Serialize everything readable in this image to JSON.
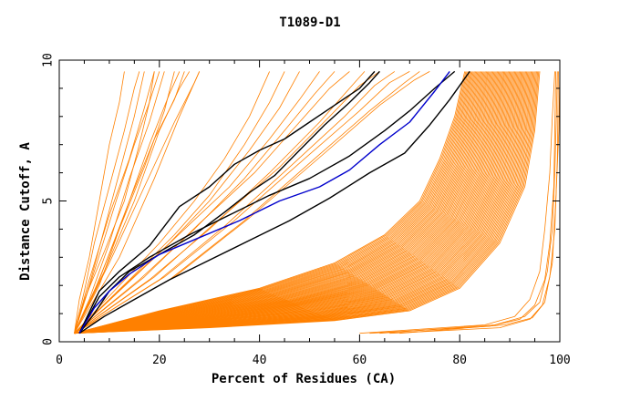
{
  "chart_data": {
    "type": "line",
    "title": "T1089-D1",
    "xlabel": "Percent of Residues (CA)",
    "ylabel": "Distance Cutoff, A",
    "xlim": [
      0,
      100
    ],
    "ylim": [
      0,
      10
    ],
    "x_ticks": [
      "0",
      "20",
      "40",
      "60",
      "80",
      "100"
    ],
    "y_ticks": [
      "0",
      "5",
      "10"
    ],
    "grid": false,
    "legend": "none",
    "colors": {
      "background_group": "#ff8000",
      "highlight_black": "#000000",
      "highlight_blue": "#0000cc"
    },
    "background_group": {
      "left_steep": [
        [
          [
            3,
            0.3
          ],
          [
            4,
            1.5
          ],
          [
            6,
            3
          ],
          [
            8,
            5
          ],
          [
            10,
            7
          ],
          [
            12,
            8.5
          ],
          [
            13,
            9.6
          ]
        ],
        [
          [
            3,
            0.3
          ],
          [
            5,
            1.8
          ],
          [
            7,
            3.5
          ],
          [
            10,
            5.5
          ],
          [
            13,
            7.5
          ],
          [
            15,
            9
          ],
          [
            16,
            9.6
          ]
        ],
        [
          [
            3,
            0.3
          ],
          [
            6,
            2
          ],
          [
            9,
            4
          ],
          [
            12,
            6
          ],
          [
            15,
            8
          ],
          [
            17,
            9.6
          ]
        ],
        [
          [
            3,
            0.3
          ],
          [
            6,
            2.2
          ],
          [
            10,
            4.5
          ],
          [
            14,
            6.5
          ],
          [
            17,
            8.3
          ],
          [
            19,
            9.6
          ]
        ],
        [
          [
            3,
            0.3
          ],
          [
            7,
            2.5
          ],
          [
            11,
            4.8
          ],
          [
            15,
            7
          ],
          [
            18,
            8.5
          ],
          [
            20,
            9.6
          ]
        ],
        [
          [
            3,
            0.3
          ],
          [
            6,
            1.5
          ],
          [
            10,
            3.5
          ],
          [
            14,
            5.8
          ],
          [
            18,
            7.8
          ],
          [
            21,
            9.6
          ]
        ],
        [
          [
            3,
            0.3
          ],
          [
            7,
            1.8
          ],
          [
            12,
            4
          ],
          [
            17,
            6.2
          ],
          [
            21,
            8.2
          ],
          [
            23,
            9.6
          ]
        ],
        [
          [
            3,
            0.3
          ],
          [
            8,
            2
          ],
          [
            13,
            4.5
          ],
          [
            18,
            7
          ],
          [
            22,
            8.8
          ],
          [
            24,
            9.6
          ]
        ],
        [
          [
            3,
            0.3
          ],
          [
            5,
            1.5
          ],
          [
            9,
            3.2
          ],
          [
            13,
            5
          ],
          [
            16,
            7
          ],
          [
            18,
            8.5
          ],
          [
            19,
            9.6
          ]
        ],
        [
          [
            3,
            0.3
          ],
          [
            8,
            2.2
          ],
          [
            14,
            5
          ],
          [
            19,
            7.2
          ],
          [
            23,
            8.6
          ],
          [
            25,
            9.6
          ]
        ],
        [
          [
            3,
            0.3
          ],
          [
            9,
            2.5
          ],
          [
            15,
            5
          ],
          [
            20,
            7.5
          ],
          [
            24,
            9
          ],
          [
            26,
            9.6
          ]
        ],
        [
          [
            3,
            0.3
          ],
          [
            10,
            2.8
          ],
          [
            17,
            5.5
          ],
          [
            23,
            7.8
          ],
          [
            27,
            9.2
          ],
          [
            28,
            9.6
          ]
        ],
        [
          [
            3,
            0.3
          ],
          [
            12,
            3
          ],
          [
            19,
            5.8
          ],
          [
            24,
            8
          ],
          [
            28,
            9.6
          ]
        ]
      ],
      "upper_mid": [
        [
          [
            3,
            0.3
          ],
          [
            12,
            2
          ],
          [
            20,
            3.5
          ],
          [
            27,
            5
          ],
          [
            33,
            6.5
          ],
          [
            38,
            8
          ],
          [
            42,
            9.6
          ]
        ],
        [
          [
            3,
            0.3
          ],
          [
            14,
            2.2
          ],
          [
            23,
            3.8
          ],
          [
            30,
            5.2
          ],
          [
            37,
            7
          ],
          [
            42,
            8.5
          ],
          [
            45,
            9.6
          ]
        ],
        [
          [
            3,
            0.3
          ],
          [
            13,
            2
          ],
          [
            22,
            3.5
          ],
          [
            30,
            5
          ],
          [
            38,
            6.8
          ],
          [
            44,
            8.3
          ],
          [
            48,
            9.6
          ]
        ],
        [
          [
            3,
            0.3
          ],
          [
            15,
            2.3
          ],
          [
            25,
            4
          ],
          [
            34,
            5.5
          ],
          [
            42,
            7.2
          ],
          [
            48,
            8.6
          ],
          [
            52,
            9.6
          ]
        ],
        [
          [
            3,
            0.3
          ],
          [
            16,
            2.2
          ],
          [
            27,
            4
          ],
          [
            37,
            5.8
          ],
          [
            45,
            7.5
          ],
          [
            51,
            8.8
          ],
          [
            55,
            9.6
          ]
        ],
        [
          [
            3,
            0.3
          ],
          [
            17,
            2.3
          ],
          [
            28,
            4.2
          ],
          [
            39,
            6
          ],
          [
            48,
            7.8
          ],
          [
            54,
            9
          ],
          [
            58,
            9.6
          ]
        ],
        [
          [
            3,
            0.3
          ],
          [
            18,
            2.2
          ],
          [
            30,
            4
          ],
          [
            42,
            6
          ],
          [
            52,
            7.8
          ],
          [
            58,
            9
          ],
          [
            61,
            9.6
          ]
        ],
        [
          [
            3,
            0.3
          ],
          [
            19,
            2.3
          ],
          [
            31,
            4.2
          ],
          [
            44,
            6.2
          ],
          [
            54,
            8
          ],
          [
            60,
            9.1
          ],
          [
            64,
            9.6
          ]
        ],
        [
          [
            3,
            0.3
          ],
          [
            20,
            2.2
          ],
          [
            33,
            4.1
          ],
          [
            46,
            6.2
          ],
          [
            57,
            8
          ],
          [
            63,
            9.1
          ],
          [
            67,
            9.6
          ]
        ],
        [
          [
            3,
            0.3
          ],
          [
            21,
            2.3
          ],
          [
            35,
            4.3
          ],
          [
            49,
            6.5
          ],
          [
            60,
            8.2
          ],
          [
            66,
            9.2
          ],
          [
            70,
            9.6
          ]
        ],
        [
          [
            3,
            0.3
          ],
          [
            22,
            2.2
          ],
          [
            37,
            4.3
          ],
          [
            51,
            6.5
          ],
          [
            62,
            8.2
          ],
          [
            69,
            9.2
          ],
          [
            72,
            9.6
          ]
        ],
        [
          [
            3,
            0.3
          ],
          [
            23,
            2.3
          ],
          [
            38,
            4.4
          ],
          [
            53,
            6.7
          ],
          [
            64,
            8.4
          ],
          [
            71,
            9.3
          ],
          [
            74,
            9.6
          ]
        ]
      ],
      "dense_band": {
        "tight": [
          [
            3,
            0.3
          ],
          [
            20,
            1.1
          ],
          [
            40,
            1.9
          ],
          [
            55,
            2.8
          ],
          [
            65,
            3.8
          ],
          [
            72,
            5
          ],
          [
            76,
            6.5
          ],
          [
            79,
            8
          ],
          [
            81,
            9.6
          ]
        ],
        "loose": [
          [
            3,
            0.3
          ],
          [
            30,
            0.5
          ],
          [
            55,
            0.75
          ],
          [
            70,
            1.1
          ],
          [
            80,
            1.9
          ],
          [
            88,
            3.5
          ],
          [
            93,
            5.5
          ],
          [
            95,
            7.5
          ],
          [
            96,
            9.6
          ]
        ],
        "count": 70
      },
      "lower_right": [
        [
          [
            60,
            0.3
          ],
          [
            85,
            0.6
          ],
          [
            91,
            0.9
          ],
          [
            94,
            1.5
          ],
          [
            96,
            2.5
          ],
          [
            97,
            4
          ],
          [
            98,
            6
          ],
          [
            98.5,
            8
          ],
          [
            99,
            9.6
          ]
        ],
        [
          [
            62,
            0.3
          ],
          [
            86,
            0.55
          ],
          [
            92,
            0.8
          ],
          [
            95,
            1.3
          ],
          [
            97,
            2.2
          ],
          [
            98,
            3.5
          ],
          [
            98.8,
            5.5
          ],
          [
            99,
            7.5
          ],
          [
            99.2,
            9.6
          ]
        ],
        [
          [
            64,
            0.3
          ],
          [
            87,
            0.6
          ],
          [
            93,
            0.9
          ],
          [
            96,
            1.4
          ],
          [
            97.5,
            2.5
          ],
          [
            98.5,
            4
          ],
          [
            99,
            6
          ],
          [
            99.3,
            8
          ],
          [
            99.5,
            9.6
          ]
        ],
        [
          [
            66,
            0.3
          ],
          [
            88,
            0.5
          ],
          [
            94,
            0.8
          ],
          [
            96.5,
            1.3
          ],
          [
            98,
            2.3
          ],
          [
            99,
            4
          ],
          [
            99.5,
            6.5
          ],
          [
            99.7,
            9.6
          ]
        ],
        [
          [
            68,
            0.3
          ],
          [
            89,
            0.6
          ],
          [
            94.5,
            0.85
          ],
          [
            97,
            1.4
          ],
          [
            98.5,
            2.8
          ],
          [
            99.2,
            5
          ],
          [
            99.8,
            7.5
          ],
          [
            100,
            9.6
          ]
        ]
      ]
    },
    "highlight_black": [
      [
        [
          4,
          0.3
        ],
        [
          8,
          1.8
        ],
        [
          12,
          2.5
        ],
        [
          18,
          3.4
        ],
        [
          24,
          4.8
        ],
        [
          30,
          5.5
        ],
        [
          35,
          6.3
        ],
        [
          40,
          6.8
        ],
        [
          45,
          7.2
        ],
        [
          50,
          7.8
        ],
        [
          55,
          8.4
        ],
        [
          60,
          9
        ],
        [
          63,
          9.6
        ]
      ],
      [
        [
          4,
          0.3
        ],
        [
          7,
          1
        ],
        [
          10,
          1.8
        ],
        [
          14,
          2.5
        ],
        [
          20,
          3.1
        ],
        [
          27,
          3.8
        ],
        [
          33,
          4.6
        ],
        [
          38,
          5.3
        ],
        [
          43,
          5.9
        ],
        [
          48,
          6.8
        ],
        [
          53,
          7.7
        ],
        [
          58,
          8.5
        ],
        [
          62,
          9.2
        ],
        [
          64,
          9.6
        ]
      ],
      [
        [
          4,
          0.3
        ],
        [
          8,
          1.6
        ],
        [
          12,
          2.3
        ],
        [
          18,
          3
        ],
        [
          26,
          3.8
        ],
        [
          34,
          4.5
        ],
        [
          42,
          5.2
        ],
        [
          50,
          5.8
        ],
        [
          58,
          6.6
        ],
        [
          65,
          7.5
        ],
        [
          70,
          8.2
        ],
        [
          75,
          9
        ],
        [
          79,
          9.6
        ]
      ],
      [
        [
          4,
          0.3
        ],
        [
          9,
          0.9
        ],
        [
          15,
          1.5
        ],
        [
          22,
          2.2
        ],
        [
          30,
          2.9
        ],
        [
          38,
          3.6
        ],
        [
          46,
          4.3
        ],
        [
          54,
          5.1
        ],
        [
          62,
          6
        ],
        [
          69,
          6.7
        ],
        [
          74,
          7.7
        ],
        [
          78,
          8.6
        ],
        [
          82,
          9.6
        ]
      ]
    ],
    "highlight_blue": [
      [
        [
          4,
          0.3
        ],
        [
          7,
          1.2
        ],
        [
          10,
          1.8
        ],
        [
          14,
          2.4
        ],
        [
          20,
          3.1
        ],
        [
          28,
          3.7
        ],
        [
          36,
          4.3
        ],
        [
          44,
          5
        ],
        [
          52,
          5.5
        ],
        [
          58,
          6.1
        ],
        [
          64,
          7
        ],
        [
          70,
          7.8
        ],
        [
          75,
          8.9
        ],
        [
          78,
          9.6
        ]
      ]
    ]
  }
}
